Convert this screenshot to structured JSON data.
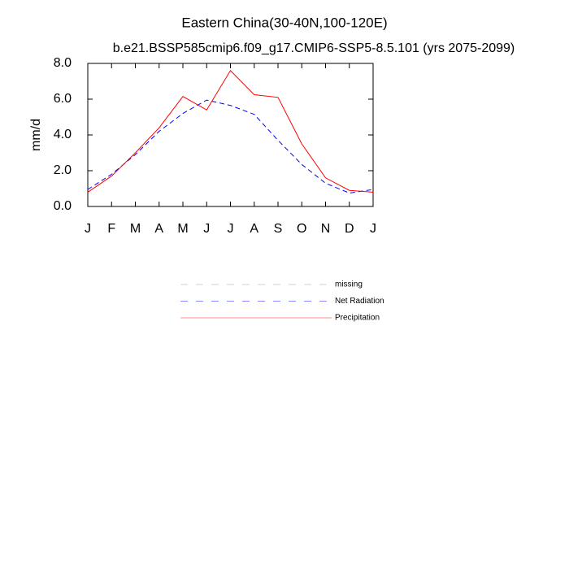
{
  "chart_data": {
    "type": "line",
    "title": "Eastern China(30-40N,100-120E)",
    "subtitle": "b.e21.BSSP585cmip6.f09_g17.CMIP6-SSP5-8.5.101 (yrs 2075-2099)",
    "y_label": "mm/d",
    "categories": [
      "J",
      "F",
      "M",
      "A",
      "M",
      "J",
      "J",
      "A",
      "S",
      "O",
      "N",
      "D",
      "J"
    ],
    "ylim": [
      0,
      8
    ],
    "yticks": [
      {
        "value": 0,
        "label": "0.0"
      },
      {
        "value": 2,
        "label": "2.0"
      },
      {
        "value": 4,
        "label": "4.0"
      },
      {
        "value": 6,
        "label": "6.0"
      },
      {
        "value": 8,
        "label": "8.0"
      }
    ],
    "series": [
      {
        "name": "missing",
        "color": "#999999",
        "dash": true,
        "values": [
          null,
          null,
          null,
          null,
          null,
          null,
          null,
          null,
          null,
          null,
          null,
          null,
          null
        ]
      },
      {
        "name": "Net Radiation",
        "color": "#0000ff",
        "dash": true,
        "values": [
          0.95,
          1.8,
          2.9,
          4.2,
          5.2,
          5.95,
          5.65,
          5.15,
          3.7,
          2.35,
          1.3,
          0.75,
          0.95
        ]
      },
      {
        "name": "Precipitation",
        "color": "#ff0000",
        "dash": false,
        "values": [
          0.8,
          1.7,
          3.0,
          4.4,
          6.15,
          5.4,
          7.6,
          6.25,
          6.1,
          3.5,
          1.6,
          0.9,
          0.8
        ]
      }
    ]
  }
}
